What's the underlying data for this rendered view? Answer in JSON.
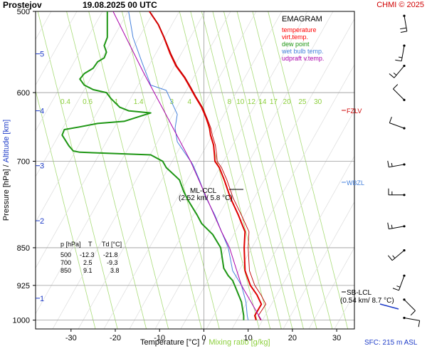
{
  "header": {
    "station": "Prostejov",
    "datetime": "19.08.2025 00 UTC",
    "copyright": "CHMI © 2025"
  },
  "footer": {
    "xlabel": "Temperature [°C]",
    "separator": "/",
    "xlabel_mixing": "Mixing ratio [g/kg]",
    "surface": "SFC: 215 m ASL"
  },
  "chart_data": {
    "type": "line",
    "title": "EMAGRAM",
    "xlabel": "Temperature [°C] / Mixing ratio [g/kg]",
    "ylabel": "Pressure [hPa]",
    "ylabel_alt": "Altitude [km]",
    "xlim": [
      -38,
      34
    ],
    "ylim": [
      1020,
      500
    ],
    "x_ticks": [
      -30,
      -20,
      -10,
      0,
      10,
      20,
      30
    ],
    "y_ticks": [
      500,
      600,
      700,
      850,
      925,
      1000
    ],
    "alt_ticks": [
      {
        "p": 952,
        "label": "1"
      },
      {
        "p": 800,
        "label": "2"
      },
      {
        "p": 707,
        "label": "3"
      },
      {
        "p": 625,
        "label": "4"
      },
      {
        "p": 550,
        "label": "5"
      }
    ],
    "mixing_ratio_labels": [
      "0.4",
      "0.6",
      "1",
      "1.4",
      "3",
      "4",
      "8",
      "10",
      "12",
      "14",
      "17",
      "20",
      "25",
      "30"
    ],
    "legend": [
      {
        "label": "temperature",
        "color": "#ff0000"
      },
      {
        "label": "virt.temp.",
        "color": "#ff0000"
      },
      {
        "label": "dew point",
        "color": "#1e9614"
      },
      {
        "label": "wet bulb temp.",
        "color": "#4682dc"
      },
      {
        "label": "udpraft v.temp.",
        "color": "#aa00aa"
      }
    ],
    "series": [
      {
        "name": "temperature",
        "color": "#e00000",
        "points": [
          [
            11.8,
            1000
          ],
          [
            11.5,
            990
          ],
          [
            13.0,
            965
          ],
          [
            12.0,
            945
          ],
          [
            10.5,
            925
          ],
          [
            9.3,
            895
          ],
          [
            9.1,
            850
          ],
          [
            9.3,
            820
          ],
          [
            7.8,
            790
          ],
          [
            6.0,
            760
          ],
          [
            4.6,
            730
          ],
          [
            3.5,
            710
          ],
          [
            2.5,
            700
          ],
          [
            2.4,
            690
          ],
          [
            2.2,
            675
          ],
          [
            1.5,
            660
          ],
          [
            1.3,
            650
          ],
          [
            0.5,
            635
          ],
          [
            -0.5,
            620
          ],
          [
            -2.0,
            605
          ],
          [
            -3.2,
            592
          ],
          [
            -4.4,
            580
          ],
          [
            -6.3,
            565
          ],
          [
            -7.6,
            550
          ],
          [
            -9.0,
            530
          ],
          [
            -10.3,
            515
          ],
          [
            -12.3,
            500
          ]
        ]
      },
      {
        "name": "virt.temp.",
        "color": "#c00000",
        "points": [
          [
            12.8,
            1000
          ],
          [
            12.3,
            990
          ],
          [
            14.0,
            965
          ],
          [
            12.9,
            945
          ],
          [
            11.5,
            925
          ],
          [
            10.3,
            895
          ],
          [
            10.0,
            850
          ],
          [
            10.2,
            820
          ],
          [
            8.5,
            790
          ],
          [
            6.6,
            760
          ],
          [
            5.2,
            730
          ],
          [
            4.0,
            710
          ],
          [
            3.0,
            700
          ],
          [
            2.9,
            690
          ],
          [
            2.6,
            675
          ],
          [
            1.9,
            660
          ],
          [
            1.6,
            650
          ],
          [
            0.7,
            635
          ],
          [
            -0.3,
            620
          ],
          [
            -1.8,
            605
          ],
          [
            -3.0,
            592
          ],
          [
            -4.2,
            580
          ],
          [
            -6.1,
            565
          ],
          [
            -7.4,
            550
          ],
          [
            -8.9,
            530
          ],
          [
            -10.2,
            515
          ],
          [
            -12.2,
            500
          ]
        ]
      },
      {
        "name": "dew point",
        "color": "#1e9614",
        "points": [
          [
            9.0,
            1000
          ],
          [
            9.0,
            990
          ],
          [
            8.5,
            960
          ],
          [
            7.2,
            930
          ],
          [
            6.5,
            915
          ],
          [
            5.5,
            905
          ],
          [
            4.5,
            890
          ],
          [
            3.8,
            850
          ],
          [
            2.0,
            825
          ],
          [
            -0.5,
            805
          ],
          [
            -1.5,
            790
          ],
          [
            -3.5,
            765
          ],
          [
            -4.5,
            750
          ],
          [
            -5.5,
            730
          ],
          [
            -8.5,
            710
          ],
          [
            -9.3,
            700
          ],
          [
            -12.0,
            690
          ],
          [
            -28.0,
            686
          ],
          [
            -29.5,
            684
          ],
          [
            -30.5,
            676
          ],
          [
            -32.0,
            660
          ],
          [
            -31.5,
            652
          ],
          [
            -28.0,
            648
          ],
          [
            -24.0,
            643
          ],
          [
            -18.0,
            640
          ],
          [
            -12.0,
            628
          ],
          [
            -17.0,
            625
          ],
          [
            -19.0,
            620
          ],
          [
            -21.0,
            608
          ],
          [
            -22.0,
            600
          ],
          [
            -25.0,
            596
          ],
          [
            -27.0,
            590
          ],
          [
            -28.0,
            582
          ],
          [
            -27.0,
            575
          ],
          [
            -25.0,
            568
          ],
          [
            -24.0,
            560
          ],
          [
            -22.5,
            555
          ],
          [
            -22.0,
            548
          ],
          [
            -22.5,
            540
          ],
          [
            -21.8,
            530
          ],
          [
            -21.8,
            500
          ]
        ]
      },
      {
        "name": "wet bulb temp.",
        "color": "#4682dc",
        "points": [
          [
            10.0,
            1000
          ],
          [
            9.8,
            990
          ],
          [
            9.5,
            960
          ],
          [
            8.5,
            925
          ],
          [
            6.5,
            895
          ],
          [
            5.5,
            850
          ],
          [
            4.0,
            820
          ],
          [
            2.5,
            790
          ],
          [
            0.5,
            760
          ],
          [
            -1.0,
            730
          ],
          [
            -2.5,
            705
          ],
          [
            -4.0,
            690
          ],
          [
            -6.0,
            670
          ],
          [
            -6.5,
            650
          ],
          [
            -6.0,
            630
          ],
          [
            -7.5,
            610
          ],
          [
            -8.5,
            597
          ],
          [
            -12.0,
            590
          ],
          [
            -13.0,
            575
          ],
          [
            -14.0,
            560
          ],
          [
            -16.0,
            530
          ],
          [
            -17.0,
            500
          ]
        ]
      },
      {
        "name": "udpraft v.temp.",
        "color": "#aa00aa",
        "points": [
          [
            13.0,
            1000
          ],
          [
            8.5,
            925
          ],
          [
            5.8,
            850
          ],
          [
            4.0,
            820
          ],
          [
            -3.0,
            700
          ],
          [
            -9.0,
            625
          ],
          [
            -13.5,
            575
          ],
          [
            -20.5,
            500
          ]
        ]
      }
    ],
    "annotations": [
      {
        "label": "FZLV",
        "p": 626,
        "color": "#d00000"
      },
      {
        "label": "WBZL",
        "p": 749,
        "color": "#4682dc"
      },
      {
        "label": "ML-CCL",
        "detail": "(2.52 km/ 5.8 °C)",
        "p": 752,
        "t": 5.8
      },
      {
        "label": "SB-LCL",
        "detail": "(0.54 km/ 8.7 °C)",
        "p": 960,
        "t": 8.7
      }
    ],
    "table": {
      "headers": [
        "p [hPa]",
        "T",
        "Td [°C]"
      ],
      "rows": [
        [
          "500",
          "-12.3",
          "-21.8"
        ],
        [
          "700",
          "2.5",
          "-9.3"
        ],
        [
          "850",
          "9.1",
          "3.8"
        ]
      ]
    },
    "wind_barbs": [
      {
        "p": 505,
        "dir": 170,
        "speed": 20
      },
      {
        "p": 540,
        "dir": 190,
        "speed": 15
      },
      {
        "p": 565,
        "dir": 220,
        "speed": 15
      },
      {
        "p": 610,
        "dir": 315,
        "speed": 10
      },
      {
        "p": 650,
        "dir": 290,
        "speed": 10
      },
      {
        "p": 705,
        "dir": 260,
        "speed": 15
      },
      {
        "p": 755,
        "dir": 270,
        "speed": 15
      },
      {
        "p": 810,
        "dir": 260,
        "speed": 15
      },
      {
        "p": 855,
        "dir": 230,
        "speed": 15
      },
      {
        "p": 905,
        "dir": 200,
        "speed": 15
      },
      {
        "p": 955,
        "dir": 135,
        "speed": 10
      },
      {
        "p": 995,
        "dir": 100,
        "speed": 10
      }
    ]
  }
}
